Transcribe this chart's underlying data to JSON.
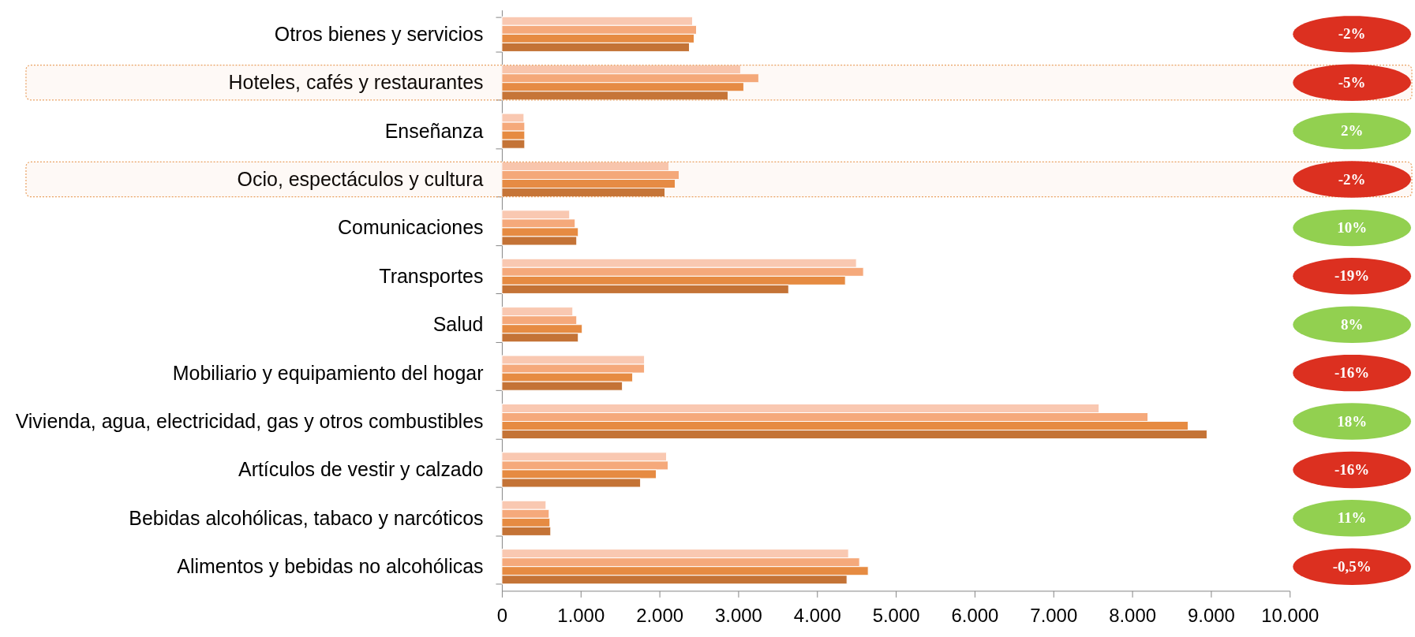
{
  "chart_data": [
    {
      "type": "bar",
      "orientation": "horizontal",
      "categories": [
        "Otros bienes y servicios",
        "Hoteles, cafés y restaurantes",
        "Enseñanza",
        "Ocio, espectáculos y cultura",
        "Comunicaciones",
        "Transportes",
        "Salud",
        "Mobiliario y equipamiento del hogar",
        "Vivienda, agua, electricidad, gas y otros combustibles",
        "Artículos de vestir y calzado",
        "Bebidas alcohólicas, tabaco y narcóticos",
        "Alimentos y bebidas no alcohólicas"
      ],
      "series": [
        {
          "color": "#f9c8b1",
          "values": [
            2420,
            3030,
            280,
            2120,
            860,
            4500,
            900,
            1810,
            7580,
            2090,
            560,
            4400
          ]
        },
        {
          "color": "#f5a97b",
          "values": [
            2470,
            3260,
            290,
            2250,
            930,
            4590,
            950,
            1810,
            8200,
            2110,
            600,
            4540
          ]
        },
        {
          "color": "#e68b42",
          "values": [
            2440,
            3070,
            290,
            2200,
            970,
            4360,
            1020,
            1660,
            8710,
            1960,
            610,
            4650
          ]
        },
        {
          "color": "#c47336",
          "values": [
            2380,
            2870,
            290,
            2070,
            950,
            3640,
            970,
            1530,
            8950,
            1760,
            620,
            4380
          ]
        }
      ],
      "xlim": [
        0,
        10000
      ],
      "xticks": [
        0,
        {
          "value": 1000,
          "label": "1.000"
        },
        {
          "value": 2000,
          "label": "2.000"
        },
        {
          "value": 3000,
          "label": "3.000"
        },
        {
          "value": 4000,
          "label": "4.000"
        },
        {
          "value": 5000,
          "label": "5.000"
        },
        {
          "value": 6000,
          "label": "6.000"
        },
        {
          "value": 7000,
          "label": "7.000"
        },
        {
          "value": 8000,
          "label": "8.000"
        },
        {
          "value": 9000,
          "label": "9.000"
        },
        {
          "value": 10000,
          "label": "10.000"
        }
      ],
      "grid": false,
      "bands": [
        {
          "axis": "y",
          "from": "Hoteles, cafés y restaurantes",
          "to": "Hoteles, cafés y restaurantes",
          "color": "#e9a060"
        },
        {
          "axis": "y",
          "from": "Ocio, espectáculos y cultura",
          "to": "Ocio, espectáculos y cultura",
          "color": "#e9a060"
        }
      ]
    },
    {
      "type": "other",
      "categories": [
        "-2%",
        "-5%",
        "2%",
        "-2%",
        "10%",
        "-19%",
        "8%",
        "-16%",
        "18%",
        "-16%",
        "11%",
        "-0,5%"
      ],
      "colors": [
        "#dc3020",
        "#dc3020",
        "#92d050",
        "#dc3020",
        "#92d050",
        "#dc3020",
        "#92d050",
        "#dc3020",
        "#92d050",
        "#dc3020",
        "#92d050",
        "#dc3020"
      ]
    }
  ]
}
